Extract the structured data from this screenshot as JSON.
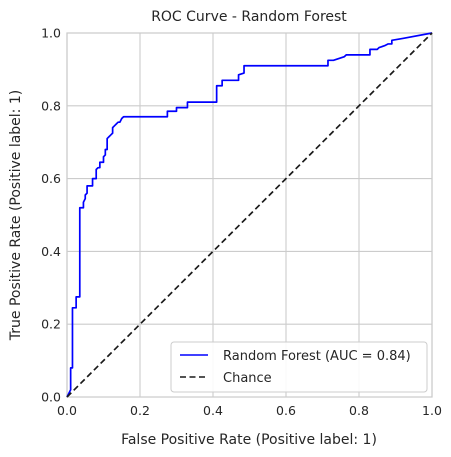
{
  "chart_data": {
    "type": "line",
    "title": "ROC Curve - Random Forest",
    "xlabel": "False Positive Rate (Positive label: 1)",
    "ylabel": "True Positive Rate (Positive label: 1)",
    "xlim": [
      0,
      1
    ],
    "ylim": [
      0,
      1
    ],
    "x_ticks": [
      "0.0",
      "0.2",
      "0.4",
      "0.6",
      "0.8",
      "1.0"
    ],
    "y_ticks": [
      "0.0",
      "0.2",
      "0.4",
      "0.6",
      "0.8",
      "1.0"
    ],
    "grid": true,
    "legend_position": "lower-right",
    "series": [
      {
        "name": "Random Forest (AUC = 0.84)",
        "color": "#0000ff",
        "style": "solid",
        "points": [
          [
            0.0,
            0.0
          ],
          [
            0.01,
            0.02
          ],
          [
            0.01,
            0.08
          ],
          [
            0.015,
            0.08
          ],
          [
            0.015,
            0.245
          ],
          [
            0.02,
            0.245
          ],
          [
            0.025,
            0.245
          ],
          [
            0.025,
            0.275
          ],
          [
            0.03,
            0.275
          ],
          [
            0.035,
            0.275
          ],
          [
            0.035,
            0.52
          ],
          [
            0.04,
            0.52
          ],
          [
            0.045,
            0.52
          ],
          [
            0.045,
            0.535
          ],
          [
            0.05,
            0.545
          ],
          [
            0.05,
            0.555
          ],
          [
            0.055,
            0.56
          ],
          [
            0.055,
            0.58
          ],
          [
            0.065,
            0.58
          ],
          [
            0.07,
            0.58
          ],
          [
            0.07,
            0.6
          ],
          [
            0.075,
            0.6
          ],
          [
            0.08,
            0.6
          ],
          [
            0.08,
            0.625
          ],
          [
            0.085,
            0.63
          ],
          [
            0.09,
            0.63
          ],
          [
            0.09,
            0.645
          ],
          [
            0.095,
            0.645
          ],
          [
            0.1,
            0.645
          ],
          [
            0.1,
            0.66
          ],
          [
            0.105,
            0.665
          ],
          [
            0.105,
            0.68
          ],
          [
            0.11,
            0.68
          ],
          [
            0.11,
            0.71
          ],
          [
            0.115,
            0.715
          ],
          [
            0.12,
            0.72
          ],
          [
            0.125,
            0.725
          ],
          [
            0.125,
            0.74
          ],
          [
            0.13,
            0.745
          ],
          [
            0.135,
            0.75
          ],
          [
            0.14,
            0.755
          ],
          [
            0.145,
            0.755
          ],
          [
            0.15,
            0.765
          ],
          [
            0.155,
            0.77
          ],
          [
            0.2,
            0.77
          ],
          [
            0.25,
            0.77
          ],
          [
            0.275,
            0.77
          ],
          [
            0.275,
            0.785
          ],
          [
            0.3,
            0.785
          ],
          [
            0.3,
            0.795
          ],
          [
            0.33,
            0.795
          ],
          [
            0.33,
            0.81
          ],
          [
            0.4,
            0.81
          ],
          [
            0.41,
            0.81
          ],
          [
            0.41,
            0.855
          ],
          [
            0.425,
            0.855
          ],
          [
            0.425,
            0.87
          ],
          [
            0.47,
            0.87
          ],
          [
            0.47,
            0.885
          ],
          [
            0.485,
            0.89
          ],
          [
            0.485,
            0.91
          ],
          [
            0.6,
            0.91
          ],
          [
            0.715,
            0.91
          ],
          [
            0.715,
            0.925
          ],
          [
            0.73,
            0.925
          ],
          [
            0.76,
            0.935
          ],
          [
            0.765,
            0.94
          ],
          [
            0.83,
            0.94
          ],
          [
            0.83,
            0.955
          ],
          [
            0.85,
            0.955
          ],
          [
            0.855,
            0.96
          ],
          [
            0.87,
            0.965
          ],
          [
            0.88,
            0.97
          ],
          [
            0.89,
            0.97
          ],
          [
            0.89,
            0.98
          ],
          [
            0.92,
            0.985
          ],
          [
            1.0,
            1.0
          ]
        ]
      },
      {
        "name": "Chance",
        "color": "#1a1a1a",
        "style": "dashed",
        "points": [
          [
            0.0,
            0.0
          ],
          [
            1.0,
            1.0
          ]
        ]
      }
    ]
  }
}
